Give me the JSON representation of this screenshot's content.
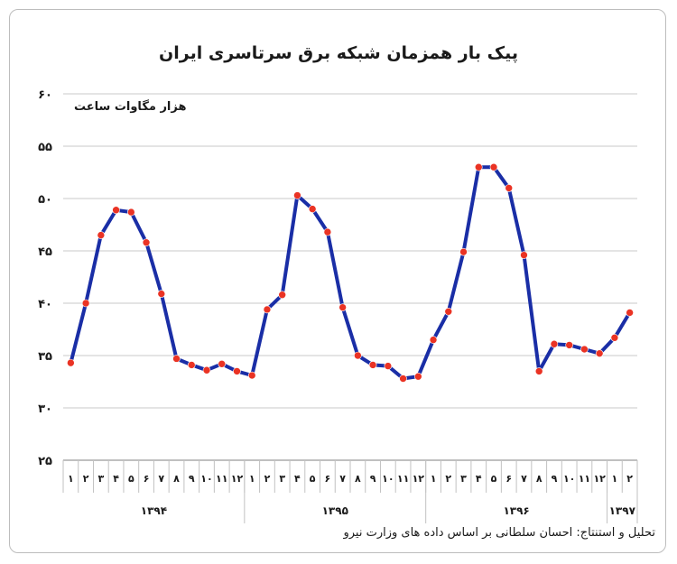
{
  "title": "پیک بار همزمان شبکه برق سرتاسری ایران",
  "credit": "تحلیل و استنتاج: احسان سلطانی بر اساس داده های وزارت نیرو",
  "chart_data": {
    "type": "line",
    "title": "پیک بار همزمان شبکه برق سرتاسری ایران",
    "ylabel": "هزار مگاوات ساعت",
    "xlabel": "",
    "ylim": [
      25,
      60
    ],
    "yticks": [
      25,
      30,
      35,
      40,
      45,
      50,
      55,
      60
    ],
    "ytick_labels": [
      "۲۵",
      "۳۰",
      "۳۵",
      "۴۰",
      "۴۵",
      "۵۰",
      "۵۵",
      "۶۰"
    ],
    "grid": true,
    "categories": [
      "1",
      "2",
      "3",
      "4",
      "5",
      "6",
      "7",
      "8",
      "9",
      "10",
      "11",
      "12",
      "1",
      "2",
      "3",
      "4",
      "5",
      "6",
      "7",
      "8",
      "9",
      "10",
      "11",
      "12",
      "1",
      "2",
      "3",
      "4",
      "5",
      "6",
      "7",
      "8",
      "9",
      "10",
      "11",
      "12",
      "1",
      "2"
    ],
    "month_labels": [
      "۱",
      "۲",
      "۳",
      "۴",
      "۵",
      "۶",
      "۷",
      "۸",
      "۹",
      "۱۰",
      "۱۱",
      "۱۲",
      "۱",
      "۲",
      "۳",
      "۴",
      "۵",
      "۶",
      "۷",
      "۸",
      "۹",
      "۱۰",
      "۱۱",
      "۱۲",
      "۱",
      "۲",
      "۳",
      "۴",
      "۵",
      "۶",
      "۷",
      "۸",
      "۹",
      "۱۰",
      "۱۱",
      "۱۲",
      "۱",
      "۲"
    ],
    "year_groups": [
      {
        "label": "۱۳۹۴",
        "start": 0,
        "end": 11
      },
      {
        "label": "۱۳۹۵",
        "start": 12,
        "end": 23
      },
      {
        "label": "۱۳۹۶",
        "start": 24,
        "end": 35
      },
      {
        "label": "۱۳۹۷",
        "start": 36,
        "end": 37
      }
    ],
    "series": [
      {
        "values": [
          34.3,
          40.0,
          46.5,
          48.9,
          48.7,
          45.8,
          40.9,
          34.7,
          34.1,
          33.6,
          34.2,
          33.5,
          33.1,
          39.4,
          40.8,
          50.3,
          49.0,
          46.8,
          39.6,
          35.0,
          34.1,
          34.0,
          32.8,
          33.0,
          36.5,
          39.2,
          44.9,
          53.0,
          53.0,
          51.0,
          44.6,
          33.5,
          36.1,
          36.0,
          35.6,
          35.2,
          36.7,
          39.1
        ],
        "color": "#1a2ea6",
        "marker_color": "#ea3324"
      }
    ]
  }
}
